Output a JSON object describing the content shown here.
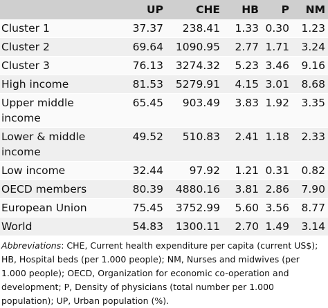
{
  "table": {
    "columns": [
      "",
      "UP",
      "CHE",
      "HB",
      "P",
      "NM"
    ],
    "rows": [
      [
        "Cluster 1",
        "37.37",
        "238.41",
        "1.33",
        "0.30",
        "1.23"
      ],
      [
        "Cluster 2",
        "69.64",
        "1090.95",
        "2.77",
        "1.71",
        "3.24"
      ],
      [
        "Cluster 3",
        "76.13",
        "3274.32",
        "5.23",
        "3.46",
        "9.16"
      ],
      [
        "High income",
        "81.53",
        "5279.91",
        "4.15",
        "3.01",
        "8.68"
      ],
      [
        "Upper middle income",
        "65.45",
        "903.49",
        "3.83",
        "1.92",
        "3.35"
      ],
      [
        "Lower & middle income",
        "49.52",
        "510.83",
        "2.41",
        "1.18",
        "2.33"
      ],
      [
        "Low income",
        "32.44",
        "97.92",
        "1.21",
        "0.31",
        "0.82"
      ],
      [
        "OECD members",
        "80.39",
        "4880.16",
        "3.81",
        "2.86",
        "7.90"
      ],
      [
        "European Union",
        "75.45",
        "3752.99",
        "5.60",
        "3.56",
        "8.77"
      ],
      [
        "World",
        "54.83",
        "1300.11",
        "2.70",
        "1.49",
        "3.14"
      ]
    ]
  },
  "footnote": {
    "label": "Abbreviations",
    "text": ": CHE, Current health expenditure per capita (current US$); HB, Hospital beds (per 1.000 people); NM, Nurses and midwives (per 1.000 people); OECD, Organization for economic co-operation and development; P, Density of physicians (total number per 1.000 population); UP, Urban population (%)."
  }
}
